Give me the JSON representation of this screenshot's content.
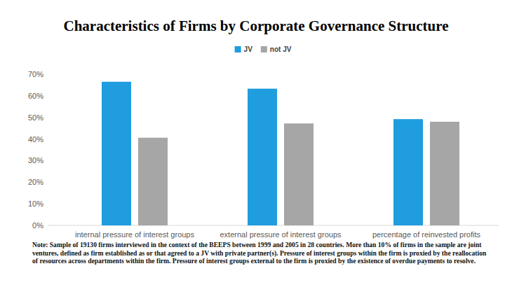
{
  "chart_data": {
    "type": "bar",
    "title": "Characteristics of Firms by Corporate Governance Structure",
    "categories": [
      "internal pressure of interest groups",
      "external pressure of interest groups",
      "percentage of reinvested profits"
    ],
    "series": [
      {
        "name": "JV",
        "color": "#1f9ddf",
        "values": [
          66.5,
          63.3,
          49.2
        ]
      },
      {
        "name": "not JV",
        "color": "#a6a6a6",
        "values": [
          40.6,
          47.2,
          48.0
        ]
      }
    ],
    "ylim": [
      0,
      70
    ],
    "yticks": [
      {
        "value": 0,
        "label": "0%"
      },
      {
        "value": 10,
        "label": "10%"
      },
      {
        "value": 20,
        "label": "20%"
      },
      {
        "value": 30,
        "label": "30%"
      },
      {
        "value": 40,
        "label": "40%"
      },
      {
        "value": 50,
        "label": "50%"
      },
      {
        "value": 60,
        "label": "60%"
      },
      {
        "value": 70,
        "label": "70%"
      }
    ],
    "grid": false,
    "legend": "top",
    "note": "Note: Sample of 19130 firms interviewed in the context of the BEEPS between 1999 and 2005 in 28 countries. More than 10% of firms in the sample are joint ventures, defined as firm established as or that agreed to a JV with private partner(s). Pressure of interest groups within the firm is proxied by the reallocation of resources across departments within the firm. Pressure of interest groups external to the firm is proxied by the existence of overdue payments to resolve."
  }
}
